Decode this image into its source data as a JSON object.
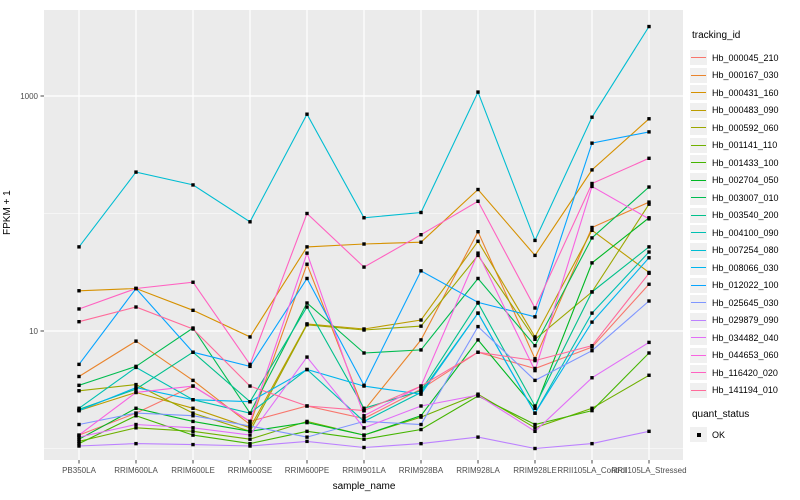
{
  "chart_data": {
    "type": "line",
    "title": "",
    "xlabel": "sample_name",
    "ylabel": "FPKM + 1",
    "x_categories": [
      "PB350LA",
      "RRIM600LA",
      "RRIM600LE",
      "RRIM600SE",
      "RRIM600PE",
      "RRIM901LA",
      "RRIM928BA",
      "RRIM928LA",
      "RRIM928LE",
      "RRII105LA_Control",
      "RRII105LA_Stressed"
    ],
    "y_scale": "log10",
    "y_major_ticks": [
      "10",
      "1000"
    ],
    "y_major_values": [
      10,
      1000
    ],
    "y_minor_values": [
      1,
      100
    ],
    "ylim": [
      0.8,
      5400
    ],
    "grid": "major-white-on-grey",
    "legend_position": "right",
    "legends": [
      {
        "title": "tracking_id",
        "kind": "colour-line"
      },
      {
        "title": "quant_status",
        "kind": "point",
        "items": [
          {
            "label": "OK",
            "marker": "black-square"
          }
        ]
      }
    ],
    "series": [
      {
        "id": "Hb_000045_210",
        "color": "#F8766D",
        "values": [
          1.3,
          2.0,
          3.4,
          1.7,
          2.3,
          1.8,
          3.2,
          6.6,
          4.8,
          7.3,
          25
        ]
      },
      {
        "id": "Hb_000167_030",
        "color": "#E9842C",
        "values": [
          4.1,
          8.2,
          3.8,
          1.6,
          37,
          2.1,
          8.4,
          70,
          5.8,
          76,
          125
        ]
      },
      {
        "id": "Hb_000431_160",
        "color": "#D69100",
        "values": [
          22,
          23,
          15,
          8.9,
          52,
          55,
          57,
          160,
          44,
          235,
          640
        ]
      },
      {
        "id": "Hb_000483_090",
        "color": "#BC9D00",
        "values": [
          2.1,
          3.0,
          2.2,
          1.5,
          11.5,
          10.4,
          12.4,
          58,
          8.9,
          72,
          31.5
        ]
      },
      {
        "id": "Hb_000592_060",
        "color": "#9CA700",
        "values": [
          3.1,
          3.5,
          2.0,
          1.4,
          11.3,
          10.2,
          11.0,
          44,
          8.5,
          21.5,
          120
        ]
      },
      {
        "id": "Hb_001141_110",
        "color": "#6FB000",
        "values": [
          1.15,
          1.5,
          1.4,
          1.2,
          1.7,
          1.3,
          1.85,
          2.9,
          1.5,
          2.2,
          4.2
        ]
      },
      {
        "id": "Hb_001433_100",
        "color": "#45B500",
        "values": [
          1.1,
          1.9,
          1.3,
          1.1,
          1.4,
          1.2,
          1.45,
          2.8,
          1.6,
          2.1,
          6.5
        ]
      },
      {
        "id": "Hb_002704_050",
        "color": "#00B823",
        "values": [
          1.2,
          2.2,
          1.7,
          1.4,
          1.66,
          1.3,
          1.9,
          8.4,
          2.2,
          38,
          92
        ]
      },
      {
        "id": "Hb_003007_010",
        "color": "#00BC51",
        "values": [
          3.45,
          5.0,
          10.6,
          2.0,
          17.3,
          6.5,
          6.9,
          28,
          7.5,
          62,
          168
        ]
      },
      {
        "id": "Hb_003540_200",
        "color": "#00C08B",
        "values": [
          2.15,
          3.2,
          6.6,
          2.5,
          16,
          2.2,
          3.1,
          17.3,
          2.3,
          21.5,
          52
        ]
      },
      {
        "id": "Hb_004100_090",
        "color": "#00C0B2",
        "values": [
          2.2,
          4.9,
          2.6,
          2.0,
          4.7,
          1.7,
          3.0,
          14.2,
          2.0,
          14.2,
          47
        ]
      },
      {
        "id": "Hb_007254_080",
        "color": "#00BDD2",
        "values": [
          52,
          225,
          175,
          85,
          700,
          92,
          102,
          1080,
          59,
          660,
          3900
        ]
      },
      {
        "id": "Hb_008066_030",
        "color": "#00B5EE",
        "values": [
          2.1,
          3.3,
          2.6,
          2.5,
          4.7,
          3.4,
          2.9,
          14.2,
          2.0,
          11.9,
          42
        ]
      },
      {
        "id": "Hb_012022_100",
        "color": "#06A4FF",
        "values": [
          5.2,
          23,
          6.6,
          5.0,
          28,
          3.45,
          32.5,
          17.5,
          13.2,
          397,
          495
        ]
      },
      {
        "id": "Hb_025645_030",
        "color": "#7F96FF",
        "values": [
          1.6,
          2.0,
          1.9,
          1.55,
          1.25,
          1.7,
          1.6,
          10.9,
          3.8,
          6.8,
          18
        ]
      },
      {
        "id": "Hb_029879_090",
        "color": "#BC81FF",
        "values": [
          1.05,
          1.1,
          1.08,
          1.05,
          1.15,
          1.02,
          1.1,
          1.25,
          1.0,
          1.1,
          1.4
        ]
      },
      {
        "id": "Hb_034482_040",
        "color": "#E26EF7",
        "values": [
          1.25,
          1.6,
          1.5,
          1.3,
          6.0,
          1.5,
          2.3,
          2.85,
          1.4,
          4.0,
          8.0
        ]
      },
      {
        "id": "Hb_044653_060",
        "color": "#F863E0",
        "values": [
          1.3,
          3.0,
          3.4,
          1.7,
          46,
          1.9,
          3.4,
          46,
          4.6,
          170,
          90
        ]
      },
      {
        "id": "Hb_116420_020",
        "color": "#FF62C1",
        "values": [
          15.4,
          23,
          26,
          5.2,
          100,
          35,
          66,
          127,
          15.7,
          180,
          295
        ]
      },
      {
        "id": "Hb_141194_010",
        "color": "#FF6B9B",
        "values": [
          12,
          16,
          10.4,
          3.4,
          2.3,
          2.1,
          3.4,
          6.6,
          5.6,
          7.5,
          31
        ]
      }
    ]
  },
  "colors": {
    "panel_bg": "#EBEBEB",
    "grid": "#FFFFFF",
    "point": "#000000",
    "tick_label": "#4D4D4D",
    "tick_mark": "#333333",
    "axis_title": "#000000",
    "legend_key_bg": "#F0F0F0"
  }
}
